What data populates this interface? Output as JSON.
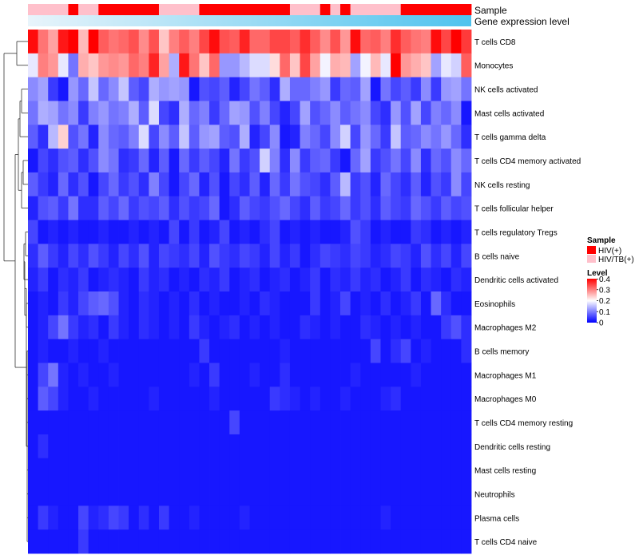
{
  "chart_data": {
    "type": "heatmap",
    "title": "",
    "annotation_tracks": [
      "Sample",
      "Gene expression level"
    ],
    "rows": [
      "T cells CD8",
      "Monocytes",
      "NK cells activated",
      "Mast cells activated",
      "T cells gamma delta",
      "T cells CD4 memory activated",
      "NK cells resting",
      "T cells follicular helper",
      "T cells regulatory  Tregs",
      "B cells naive",
      "Dendritic cells activated",
      "Eosinophils",
      "Macrophages M2",
      "B cells memory",
      "Macrophages M1",
      "Macrophages M0",
      "T cells CD4 memory resting",
      "Dendritic cells resting",
      "Mast cells resting",
      "Neutrophils",
      "Plasma cells",
      "T cells CD4 naive"
    ],
    "n_columns": 44,
    "sample_groups": [
      "HIV/TB(+)",
      "HIV/TB(+)",
      "HIV/TB(+)",
      "HIV/TB(+)",
      "HIV(+)",
      "HIV/TB(+)",
      "HIV/TB(+)",
      "HIV(+)",
      "HIV(+)",
      "HIV(+)",
      "HIV(+)",
      "HIV(+)",
      "HIV(+)",
      "HIV/TB(+)",
      "HIV/TB(+)",
      "HIV/TB(+)",
      "HIV/TB(+)",
      "HIV(+)",
      "HIV(+)",
      "HIV(+)",
      "HIV(+)",
      "HIV(+)",
      "HIV(+)",
      "HIV(+)",
      "HIV(+)",
      "HIV(+)",
      "HIV/TB(+)",
      "HIV/TB(+)",
      "HIV/TB(+)",
      "HIV(+)",
      "HIV/TB(+)",
      "HIV(+)",
      "HIV/TB(+)",
      "HIV/TB(+)",
      "HIV/TB(+)",
      "HIV/TB(+)",
      "HIV/TB(+)",
      "HIV(+)",
      "HIV(+)",
      "HIV(+)",
      "HIV(+)",
      "HIV(+)",
      "HIV(+)",
      "HIV(+)"
    ],
    "values": [
      [
        0.43,
        0.34,
        0.3,
        0.42,
        0.45,
        0.28,
        0.45,
        0.36,
        0.34,
        0.35,
        0.37,
        0.32,
        0.37,
        0.27,
        0.33,
        0.36,
        0.33,
        0.38,
        0.43,
        0.37,
        0.36,
        0.41,
        0.35,
        0.35,
        0.38,
        0.38,
        0.36,
        0.4,
        0.36,
        0.32,
        0.37,
        0.31,
        0.43,
        0.35,
        0.36,
        0.33,
        0.4,
        0.36,
        0.34,
        0.33,
        0.43,
        0.38,
        0.44,
        0.39
      ],
      [
        0.2,
        0.33,
        0.31,
        0.2,
        0.1,
        0.29,
        0.27,
        0.31,
        0.32,
        0.31,
        0.35,
        0.33,
        0.41,
        0.3,
        0.15,
        0.42,
        0.34,
        0.27,
        0.35,
        0.13,
        0.13,
        0.16,
        0.19,
        0.19,
        0.25,
        0.35,
        0.27,
        0.38,
        0.3,
        0.21,
        0.29,
        0.28,
        0.14,
        0.21,
        0.28,
        0.2,
        0.44,
        0.31,
        0.29,
        0.27,
        0.14,
        0.2,
        0.18,
        0.36
      ],
      [
        0.12,
        0.14,
        0.05,
        0.02,
        0.13,
        0.09,
        0.17,
        0.09,
        0.12,
        0.17,
        0.08,
        0.06,
        0.15,
        0.13,
        0.14,
        0.13,
        0.02,
        0.07,
        0.06,
        0.08,
        0.03,
        0.06,
        0.1,
        0.08,
        0.04,
        0.15,
        0.09,
        0.09,
        0.11,
        0.13,
        0.05,
        0.09,
        0.08,
        0.14,
        0.02,
        0.1,
        0.06,
        0.08,
        0.05,
        0.12,
        0.05,
        0.13,
        0.14,
        0.1
      ],
      [
        0.1,
        0.15,
        0.14,
        0.1,
        0.12,
        0.05,
        0.11,
        0.13,
        0.1,
        0.11,
        0.15,
        0.08,
        0.19,
        0.06,
        0.04,
        0.15,
        0.09,
        0.11,
        0.05,
        0.09,
        0.14,
        0.13,
        0.07,
        0.11,
        0.06,
        0.03,
        0.06,
        0.14,
        0.07,
        0.09,
        0.12,
        0.08,
        0.1,
        0.12,
        0.06,
        0.04,
        0.13,
        0.07,
        0.14,
        0.06,
        0.11,
        0.09,
        0.12,
        0.02
      ],
      [
        0.08,
        0.04,
        0.16,
        0.26,
        0.07,
        0.1,
        0.03,
        0.12,
        0.09,
        0.08,
        0.11,
        0.19,
        0.06,
        0.12,
        0.08,
        0.17,
        0.08,
        0.13,
        0.14,
        0.08,
        0.07,
        0.15,
        0.03,
        0.06,
        0.12,
        0.02,
        0.03,
        0.11,
        0.09,
        0.06,
        0.12,
        0.18,
        0.06,
        0.13,
        0.09,
        0.05,
        0.17,
        0.08,
        0.09,
        0.12,
        0.1,
        0.13,
        0.09,
        0.04
      ],
      [
        0.02,
        0.06,
        0.04,
        0.07,
        0.08,
        0.04,
        0.07,
        0.12,
        0.1,
        0.04,
        0.05,
        0.09,
        0.03,
        0.08,
        0.02,
        0.09,
        0.05,
        0.08,
        0.06,
        0.03,
        0.1,
        0.05,
        0.07,
        0.18,
        0.11,
        0.04,
        0.12,
        0.05,
        0.08,
        0.09,
        0.05,
        0.02,
        0.09,
        0.14,
        0.05,
        0.07,
        0.1,
        0.06,
        0.12,
        0.04,
        0.09,
        0.07,
        0.12,
        0.09
      ],
      [
        0.08,
        0.05,
        0.03,
        0.09,
        0.04,
        0.07,
        0.02,
        0.06,
        0.09,
        0.05,
        0.07,
        0.04,
        0.11,
        0.06,
        0.02,
        0.06,
        0.09,
        0.03,
        0.07,
        0.02,
        0.06,
        0.04,
        0.08,
        0.03,
        0.09,
        0.05,
        0.1,
        0.07,
        0.06,
        0.04,
        0.08,
        0.16,
        0.05,
        0.07,
        0.03,
        0.09,
        0.06,
        0.04,
        0.08,
        0.03,
        0.07,
        0.05,
        0.12,
        0.06
      ],
      [
        0.03,
        0.07,
        0.08,
        0.05,
        0.1,
        0.04,
        0.04,
        0.08,
        0.06,
        0.09,
        0.05,
        0.07,
        0.06,
        0.08,
        0.04,
        0.07,
        0.05,
        0.06,
        0.09,
        0.02,
        0.04,
        0.08,
        0.06,
        0.05,
        0.07,
        0.09,
        0.06,
        0.04,
        0.08,
        0.05,
        0.06,
        0.09,
        0.05,
        0.07,
        0.04,
        0.08,
        0.06,
        0.05,
        0.09,
        0.07,
        0.05,
        0.08,
        0.06,
        0.07
      ],
      [
        0.06,
        0.02,
        0.03,
        0.02,
        0.03,
        0.02,
        0.02,
        0.03,
        0.02,
        0.02,
        0.03,
        0.02,
        0.03,
        0.02,
        0.06,
        0.02,
        0.05,
        0.02,
        0.03,
        0.06,
        0.02,
        0.03,
        0.02,
        0.04,
        0.06,
        0.02,
        0.03,
        0.02,
        0.03,
        0.02,
        0.02,
        0.03,
        0.07,
        0.05,
        0.02,
        0.03,
        0.02,
        0.02,
        0.05,
        0.04,
        0.02,
        0.03,
        0.02,
        0.03
      ],
      [
        0.04,
        0.08,
        0.05,
        0.03,
        0.06,
        0.04,
        0.07,
        0.05,
        0.03,
        0.06,
        0.04,
        0.07,
        0.03,
        0.06,
        0.05,
        0.04,
        0.06,
        0.03,
        0.07,
        0.05,
        0.04,
        0.06,
        0.05,
        0.03,
        0.06,
        0.03,
        0.05,
        0.02,
        0.04,
        0.06,
        0.05,
        0.04,
        0.06,
        0.05,
        0.03,
        0.04,
        0.06,
        0.05,
        0.03,
        0.07,
        0.04,
        0.06,
        0.03,
        0.06
      ],
      [
        0.03,
        0.05,
        0.02,
        0.04,
        0.03,
        0.05,
        0.02,
        0.03,
        0.04,
        0.03,
        0.02,
        0.05,
        0.03,
        0.04,
        0.02,
        0.03,
        0.02,
        0.04,
        0.03,
        0.05,
        0.02,
        0.03,
        0.04,
        0.02,
        0.03,
        0.04,
        0.02,
        0.03,
        0.05,
        0.02,
        0.04,
        0.03,
        0.05,
        0.03,
        0.04,
        0.02,
        0.03,
        0.05,
        0.02,
        0.04,
        0.03,
        0.02,
        0.04,
        0.03
      ],
      [
        0.02,
        0.03,
        0.02,
        0.05,
        0.03,
        0.06,
        0.08,
        0.09,
        0.07,
        0.03,
        0.02,
        0.04,
        0.03,
        0.02,
        0.03,
        0.02,
        0.04,
        0.02,
        0.03,
        0.02,
        0.02,
        0.03,
        0.02,
        0.04,
        0.03,
        0.02,
        0.02,
        0.02,
        0.05,
        0.02,
        0.03,
        0.06,
        0.02,
        0.03,
        0.02,
        0.04,
        0.02,
        0.03,
        0.05,
        0.02,
        0.09,
        0.04,
        0.02,
        0.02
      ],
      [
        0.02,
        0.03,
        0.06,
        0.1,
        0.05,
        0.03,
        0.04,
        0.02,
        0.05,
        0.03,
        0.02,
        0.04,
        0.03,
        0.02,
        0.03,
        0.02,
        0.05,
        0.03,
        0.02,
        0.03,
        0.04,
        0.02,
        0.03,
        0.02,
        0.03,
        0.02,
        0.02,
        0.04,
        0.03,
        0.02,
        0.03,
        0.02,
        0.02,
        0.04,
        0.03,
        0.02,
        0.03,
        0.02,
        0.03,
        0.02,
        0.02,
        0.05,
        0.07,
        0.04
      ],
      [
        0.02,
        0.03,
        0.02,
        0.02,
        0.03,
        0.02,
        0.02,
        0.03,
        0.02,
        0.02,
        0.02,
        0.02,
        0.02,
        0.02,
        0.02,
        0.02,
        0.02,
        0.05,
        0.02,
        0.02,
        0.02,
        0.02,
        0.02,
        0.02,
        0.02,
        0.03,
        0.02,
        0.02,
        0.02,
        0.02,
        0.02,
        0.02,
        0.02,
        0.02,
        0.06,
        0.02,
        0.04,
        0.06,
        0.02,
        0.03,
        0.02,
        0.02,
        0.02,
        0.04
      ],
      [
        0.02,
        0.06,
        0.1,
        0.03,
        0.02,
        0.03,
        0.02,
        0.02,
        0.03,
        0.02,
        0.02,
        0.02,
        0.02,
        0.02,
        0.02,
        0.02,
        0.03,
        0.02,
        0.05,
        0.02,
        0.02,
        0.02,
        0.03,
        0.02,
        0.02,
        0.04,
        0.02,
        0.02,
        0.02,
        0.02,
        0.02,
        0.02,
        0.03,
        0.02,
        0.02,
        0.02,
        0.02,
        0.02,
        0.03,
        0.02,
        0.02,
        0.02,
        0.02,
        0.02
      ],
      [
        0.02,
        0.08,
        0.06,
        0.03,
        0.02,
        0.02,
        0.03,
        0.02,
        0.02,
        0.02,
        0.02,
        0.02,
        0.03,
        0.02,
        0.02,
        0.02,
        0.02,
        0.02,
        0.03,
        0.02,
        0.02,
        0.02,
        0.02,
        0.02,
        0.05,
        0.04,
        0.03,
        0.02,
        0.03,
        0.02,
        0.02,
        0.03,
        0.02,
        0.02,
        0.02,
        0.03,
        0.04,
        0.02,
        0.02,
        0.02,
        0.02,
        0.02,
        0.02,
        0.02
      ],
      [
        0.02,
        0.02,
        0.02,
        0.02,
        0.02,
        0.02,
        0.02,
        0.02,
        0.02,
        0.02,
        0.02,
        0.02,
        0.02,
        0.02,
        0.02,
        0.02,
        0.02,
        0.02,
        0.02,
        0.02,
        0.06,
        0.02,
        0.02,
        0.02,
        0.02,
        0.02,
        0.02,
        0.02,
        0.02,
        0.02,
        0.02,
        0.02,
        0.02,
        0.02,
        0.02,
        0.02,
        0.02,
        0.02,
        0.02,
        0.02,
        0.02,
        0.02,
        0.02,
        0.02
      ],
      [
        0.02,
        0.04,
        0.02,
        0.02,
        0.02,
        0.02,
        0.02,
        0.02,
        0.02,
        0.02,
        0.02,
        0.02,
        0.02,
        0.02,
        0.02,
        0.02,
        0.02,
        0.02,
        0.02,
        0.02,
        0.02,
        0.02,
        0.02,
        0.02,
        0.02,
        0.02,
        0.02,
        0.02,
        0.02,
        0.02,
        0.02,
        0.02,
        0.02,
        0.02,
        0.02,
        0.02,
        0.02,
        0.02,
        0.02,
        0.02,
        0.02,
        0.02,
        0.02,
        0.02
      ],
      [
        0.02,
        0.02,
        0.02,
        0.02,
        0.02,
        0.02,
        0.02,
        0.02,
        0.02,
        0.02,
        0.02,
        0.02,
        0.02,
        0.02,
        0.02,
        0.02,
        0.02,
        0.02,
        0.02,
        0.02,
        0.02,
        0.02,
        0.02,
        0.02,
        0.02,
        0.02,
        0.02,
        0.02,
        0.02,
        0.02,
        0.02,
        0.02,
        0.02,
        0.02,
        0.02,
        0.02,
        0.02,
        0.02,
        0.02,
        0.02,
        0.02,
        0.02,
        0.02,
        0.02
      ],
      [
        0.02,
        0.02,
        0.02,
        0.02,
        0.02,
        0.02,
        0.02,
        0.02,
        0.02,
        0.02,
        0.02,
        0.02,
        0.02,
        0.02,
        0.02,
        0.02,
        0.02,
        0.02,
        0.02,
        0.02,
        0.02,
        0.02,
        0.02,
        0.02,
        0.02,
        0.02,
        0.02,
        0.02,
        0.02,
        0.02,
        0.02,
        0.02,
        0.02,
        0.02,
        0.02,
        0.02,
        0.02,
        0.02,
        0.02,
        0.02,
        0.02,
        0.02,
        0.02,
        0.02
      ],
      [
        0.02,
        0.05,
        0.03,
        0.02,
        0.02,
        0.06,
        0.03,
        0.04,
        0.06,
        0.05,
        0.02,
        0.04,
        0.02,
        0.05,
        0.02,
        0.02,
        0.03,
        0.02,
        0.02,
        0.02,
        0.02,
        0.03,
        0.02,
        0.02,
        0.02,
        0.02,
        0.02,
        0.02,
        0.02,
        0.02,
        0.02,
        0.02,
        0.02,
        0.02,
        0.02,
        0.03,
        0.02,
        0.02,
        0.02,
        0.02,
        0.02,
        0.02,
        0.02,
        0.02
      ],
      [
        0.02,
        0.02,
        0.02,
        0.02,
        0.02,
        0.05,
        0.02,
        0.02,
        0.02,
        0.02,
        0.02,
        0.02,
        0.02,
        0.02,
        0.02,
        0.02,
        0.02,
        0.02,
        0.02,
        0.02,
        0.02,
        0.02,
        0.02,
        0.02,
        0.02,
        0.02,
        0.02,
        0.02,
        0.02,
        0.02,
        0.02,
        0.02,
        0.02,
        0.02,
        0.02,
        0.02,
        0.02,
        0.02,
        0.02,
        0.02,
        0.02,
        0.02,
        0.02,
        0.02
      ]
    ],
    "expression_gradient": [
      "#e8f4fb",
      "#4fc3ee"
    ],
    "legend": {
      "sample_title": "Sample",
      "sample_entries": [
        {
          "label": "HIV(+)",
          "color": "#ff0000"
        },
        {
          "label": "HIV/TB(+)",
          "color": "#ffc0cb"
        }
      ],
      "level_title": "Level",
      "level_ticks": [
        "0.4",
        "0.3",
        "0.2",
        "0.1",
        "0"
      ],
      "level_tick_values": [
        0.4,
        0.3,
        0.2,
        0.1,
        0
      ],
      "placement": "right"
    },
    "color_scale": {
      "low": "#0000ff",
      "mid": "#ffffff",
      "high": "#ff0000",
      "min": 0,
      "max": 0.44
    },
    "row_dendrogram": true
  }
}
